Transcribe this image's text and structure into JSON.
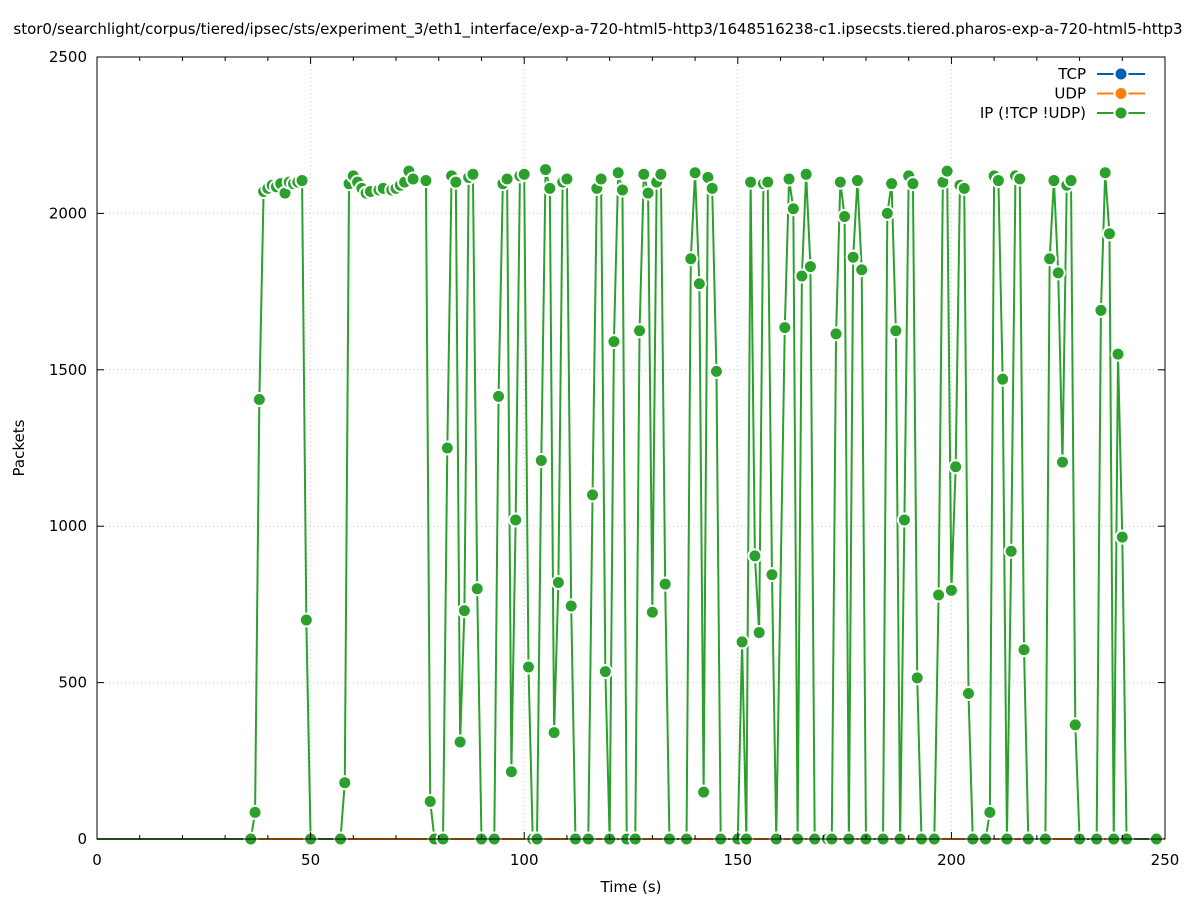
{
  "chart_data": {
    "type": "line",
    "title": "stor0/searchlight/corpus/tiered/ipsec/sts/experiment_3/eth1_interface/exp-a-720-html5-http3/1648516238-c1.ipsecsts.tiered.pharos-exp-a-720-html5-http3",
    "xlabel": "Time (s)",
    "ylabel": "Packets",
    "xlim": [
      0,
      250
    ],
    "ylim": [
      0,
      2500
    ],
    "x_ticks": [
      "0",
      "50",
      "100",
      "150",
      "200",
      "250"
    ],
    "y_ticks": [
      "0",
      "500",
      "1000",
      "1500",
      "2000",
      "2500"
    ],
    "grid": true,
    "legend_position": "top-right",
    "series": [
      {
        "name": "TCP",
        "color": "#0060ad",
        "points": [
          [
            0,
            0
          ],
          [
            250,
            0
          ]
        ]
      },
      {
        "name": "UDP",
        "color": "#ff7f0e",
        "points": [
          [
            0,
            0
          ],
          [
            250,
            0
          ]
        ]
      },
      {
        "name": "IP (!TCP  !UDP)",
        "color": "#2ca02c",
        "points": [
          [
            0,
            0
          ],
          [
            6,
            0
          ],
          [
            36,
            0
          ],
          [
            37,
            85
          ],
          [
            38,
            1405
          ],
          [
            39,
            2070
          ],
          [
            40,
            2080
          ],
          [
            41,
            2090
          ],
          [
            42,
            2085
          ],
          [
            43,
            2095
          ],
          [
            44,
            2065
          ],
          [
            45,
            2100
          ],
          [
            46,
            2095
          ],
          [
            47,
            2100
          ],
          [
            48,
            2105
          ],
          [
            49,
            700
          ],
          [
            50,
            0
          ],
          [
            57,
            0
          ],
          [
            58,
            180
          ],
          [
            59,
            2095
          ],
          [
            60,
            2120
          ],
          [
            61,
            2100
          ],
          [
            62,
            2080
          ],
          [
            63,
            2065
          ],
          [
            64,
            2070
          ],
          [
            66,
            2075
          ],
          [
            67,
            2080
          ],
          [
            69,
            2075
          ],
          [
            70,
            2080
          ],
          [
            71,
            2090
          ],
          [
            72,
            2100
          ],
          [
            73,
            2135
          ],
          [
            74,
            2110
          ],
          [
            77,
            2105
          ],
          [
            78,
            120
          ],
          [
            79,
            0
          ],
          [
            81,
            0
          ],
          [
            82,
            1250
          ],
          [
            83,
            2120
          ],
          [
            84,
            2100
          ],
          [
            85,
            310
          ],
          [
            86,
            730
          ],
          [
            87,
            2115
          ],
          [
            88,
            2125
          ],
          [
            89,
            800
          ],
          [
            90,
            0
          ],
          [
            93,
            0
          ],
          [
            94,
            1415
          ],
          [
            95,
            2095
          ],
          [
            96,
            2110
          ],
          [
            97,
            215
          ],
          [
            98,
            1020
          ],
          [
            99,
            2120
          ],
          [
            100,
            2125
          ],
          [
            101,
            550
          ],
          [
            102,
            0
          ],
          [
            103,
            0
          ],
          [
            104,
            1210
          ],
          [
            105,
            2140
          ],
          [
            106,
            2080
          ],
          [
            107,
            340
          ],
          [
            108,
            820
          ],
          [
            109,
            2100
          ],
          [
            110,
            2110
          ],
          [
            111,
            745
          ],
          [
            112,
            0
          ],
          [
            115,
            0
          ],
          [
            116,
            1100
          ],
          [
            117,
            2080
          ],
          [
            118,
            2110
          ],
          [
            119,
            535
          ],
          [
            120,
            0
          ],
          [
            121,
            1590
          ],
          [
            122,
            2130
          ],
          [
            123,
            2075
          ],
          [
            124,
            0
          ],
          [
            126,
            0
          ],
          [
            127,
            1625
          ],
          [
            128,
            2125
          ],
          [
            129,
            2065
          ],
          [
            130,
            725
          ],
          [
            131,
            2100
          ],
          [
            132,
            2125
          ],
          [
            133,
            815
          ],
          [
            134,
            0
          ],
          [
            138,
            0
          ],
          [
            139,
            1855
          ],
          [
            140,
            2130
          ],
          [
            141,
            1775
          ],
          [
            142,
            150
          ],
          [
            143,
            2115
          ],
          [
            144,
            2080
          ],
          [
            145,
            1495
          ],
          [
            146,
            0
          ],
          [
            150,
            0
          ],
          [
            151,
            630
          ],
          [
            152,
            0
          ],
          [
            153,
            2100
          ],
          [
            154,
            905
          ],
          [
            155,
            660
          ],
          [
            156,
            2095
          ],
          [
            157,
            2100
          ],
          [
            158,
            845
          ],
          [
            159,
            0
          ],
          [
            161,
            1635
          ],
          [
            162,
            2110
          ],
          [
            163,
            2015
          ],
          [
            164,
            0
          ],
          [
            165,
            1800
          ],
          [
            166,
            2125
          ],
          [
            167,
            1830
          ],
          [
            168,
            0
          ],
          [
            171,
            0
          ],
          [
            172,
            0
          ],
          [
            173,
            1615
          ],
          [
            174,
            2100
          ],
          [
            175,
            1990
          ],
          [
            176,
            0
          ],
          [
            177,
            1860
          ],
          [
            178,
            2105
          ],
          [
            179,
            1820
          ],
          [
            180,
            0
          ],
          [
            184,
            0
          ],
          [
            185,
            2000
          ],
          [
            186,
            2095
          ],
          [
            187,
            1625
          ],
          [
            188,
            0
          ],
          [
            189,
            1020
          ],
          [
            190,
            2120
          ],
          [
            191,
            2095
          ],
          [
            192,
            515
          ],
          [
            193,
            0
          ],
          [
            196,
            0
          ],
          [
            197,
            780
          ],
          [
            198,
            2100
          ],
          [
            199,
            2135
          ],
          [
            200,
            795
          ],
          [
            201,
            1190
          ],
          [
            202,
            2090
          ],
          [
            203,
            2080
          ],
          [
            204,
            465
          ],
          [
            205,
            0
          ],
          [
            208,
            0
          ],
          [
            209,
            85
          ],
          [
            210,
            2120
          ],
          [
            211,
            2105
          ],
          [
            212,
            1470
          ],
          [
            213,
            0
          ],
          [
            214,
            920
          ],
          [
            215,
            2120
          ],
          [
            216,
            2110
          ],
          [
            217,
            605
          ],
          [
            218,
            0
          ],
          [
            222,
            0
          ],
          [
            223,
            1855
          ],
          [
            224,
            2105
          ],
          [
            225,
            1810
          ],
          [
            226,
            1205
          ],
          [
            227,
            2090
          ],
          [
            228,
            2105
          ],
          [
            229,
            365
          ],
          [
            230,
            0
          ],
          [
            234,
            0
          ],
          [
            235,
            1690
          ],
          [
            236,
            2130
          ],
          [
            237,
            1935
          ],
          [
            238,
            0
          ],
          [
            239,
            1550
          ],
          [
            240,
            965
          ],
          [
            241,
            0
          ],
          [
            248,
            0
          ]
        ]
      }
    ]
  }
}
